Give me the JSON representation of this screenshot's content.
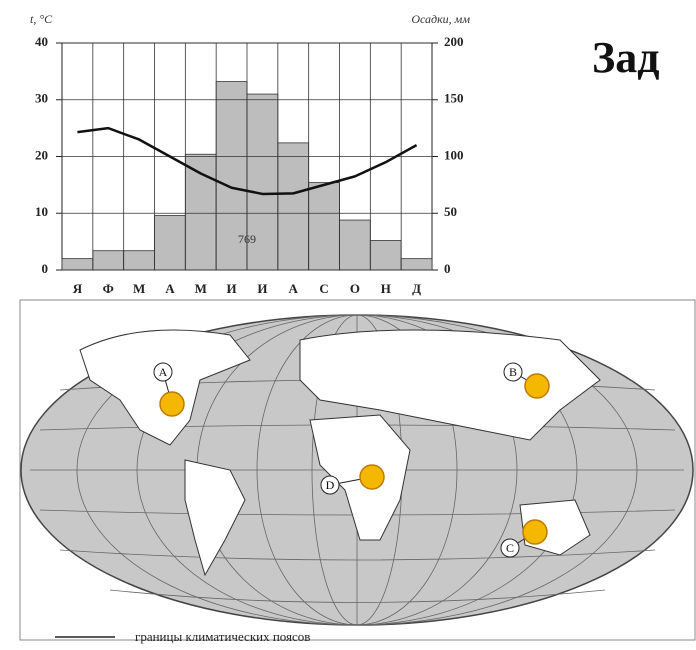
{
  "title": "Зад",
  "chart_data": {
    "type": "bar",
    "ylabel": "t, °C",
    "y2label": "Осадки, мм",
    "categories": [
      "Я",
      "Ф",
      "М",
      "А",
      "М",
      "И",
      "И",
      "А",
      "С",
      "О",
      "Н",
      "Д"
    ],
    "series": [
      {
        "type": "bar",
        "axis": "y2",
        "color": "#bdbdbd",
        "values": [
          10,
          17,
          17,
          48,
          102,
          166,
          155,
          112,
          77,
          44,
          26,
          10
        ]
      },
      {
        "type": "line",
        "color": "#111111",
        "values": [
          24.3,
          25,
          23,
          20,
          17,
          14.5,
          13.4,
          13.5,
          15,
          16.5,
          19,
          22
        ]
      }
    ],
    "annotation": "769",
    "ylim": [
      0,
      40
    ],
    "yticks": [
      0,
      10,
      20,
      30,
      40
    ],
    "y2lim": [
      0,
      200
    ],
    "y2ticks": [
      0,
      50,
      100,
      150,
      200
    ],
    "grid": true
  },
  "map": {
    "markers": [
      {
        "label": "A"
      },
      {
        "label": "B"
      },
      {
        "label": "C"
      },
      {
        "label": "D"
      }
    ],
    "legend": "границы климатических поясов"
  }
}
